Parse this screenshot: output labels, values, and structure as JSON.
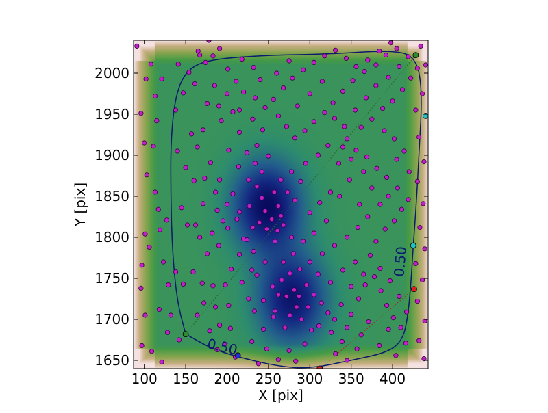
{
  "chart_data": {
    "type": "scatter",
    "xlabel": "X [pix]",
    "ylabel": "Y [pix]",
    "xlim": [
      87,
      443
    ],
    "ylim": [
      1640,
      2040
    ],
    "x_ticks": [
      100,
      150,
      200,
      250,
      300,
      350,
      400
    ],
    "y_ticks": [
      1650,
      1700,
      1750,
      1800,
      1850,
      1900,
      1950,
      2000
    ],
    "x_tick_labels": [
      "100",
      "150",
      "200",
      "250",
      "300",
      "350",
      "400"
    ],
    "y_tick_labels": [
      "1650",
      "1700",
      "1750",
      "1800",
      "1850",
      "1900",
      "1950",
      "2000"
    ],
    "contour_level_labels": [
      {
        "text": "0.50",
        "x": 193,
        "y": 1661,
        "rotate": 13
      },
      {
        "text": "0.50",
        "x": 415,
        "y": 1770,
        "rotate": -85
      }
    ],
    "contour_level": 0.5,
    "density_centers": [
      {
        "x": 248,
        "y": 1838,
        "strength": 1.0
      },
      {
        "x": 278,
        "y": 1725,
        "strength": 0.9
      }
    ],
    "contour_line": [
      [
        150,
        1682
      ],
      [
        140,
        1720
      ],
      [
        134,
        1780
      ],
      [
        132,
        1850
      ],
      [
        132,
        1920
      ],
      [
        138,
        1975
      ],
      [
        152,
        2005
      ],
      [
        180,
        2017
      ],
      [
        250,
        2022
      ],
      [
        320,
        2023
      ],
      [
        400,
        2028
      ],
      [
        428,
        2020
      ],
      [
        436,
        1980
      ],
      [
        432,
        1900
      ],
      [
        428,
        1830
      ],
      [
        425,
        1790
      ],
      [
        422,
        1740
      ],
      [
        418,
        1700
      ],
      [
        412,
        1675
      ],
      [
        395,
        1660
      ],
      [
        350,
        1650
      ],
      [
        300,
        1640
      ],
      [
        260,
        1643
      ],
      [
        210,
        1655
      ],
      [
        180,
        1665
      ],
      [
        150,
        1682
      ]
    ],
    "dotted_lines": [
      {
        "color": "#2a6a2a",
        "points": [
          [
            150,
            1682
          ],
          [
            428,
            2022
          ]
        ]
      },
      {
        "color": "#a03020",
        "points": [
          [
            312,
            1640
          ],
          [
            426,
            1737
          ]
        ]
      }
    ],
    "marker_points": [
      {
        "x": 150,
        "y": 1682,
        "color": "#2e8b2e"
      },
      {
        "x": 428,
        "y": 2022,
        "color": "#2e8b2e"
      },
      {
        "x": 213,
        "y": 1656,
        "color": "#1f2fd0"
      },
      {
        "x": 440,
        "y": 1948,
        "color": "#20c0c0"
      },
      {
        "x": 425,
        "y": 1790,
        "color": "#20c0c0"
      },
      {
        "x": 426,
        "y": 1737,
        "color": "#e02020"
      },
      {
        "x": 312,
        "y": 1640,
        "color": "#e02020"
      }
    ],
    "points": [
      [
        91,
        2033
      ],
      [
        102,
        1993
      ],
      [
        108,
        2011
      ],
      [
        96,
        1951
      ],
      [
        113,
        1972
      ],
      [
        121,
        1993
      ],
      [
        100,
        1915
      ],
      [
        111,
        1911
      ],
      [
        115,
        1942
      ],
      [
        103,
        1876
      ],
      [
        113,
        1855
      ],
      [
        117,
        1834
      ],
      [
        127,
        1821
      ],
      [
        101,
        1804
      ],
      [
        119,
        1809
      ],
      [
        106,
        1788
      ],
      [
        123,
        1770
      ],
      [
        97,
        1766
      ],
      [
        129,
        1742
      ],
      [
        96,
        1738
      ],
      [
        118,
        1712
      ],
      [
        101,
        1705
      ],
      [
        128,
        1684
      ],
      [
        97,
        1668
      ],
      [
        109,
        1661
      ],
      [
        121,
        1648
      ],
      [
        142,
        1675
      ],
      [
        132,
        1705
      ],
      [
        138,
        1758
      ],
      [
        147,
        1743
      ],
      [
        145,
        1836
      ],
      [
        152,
        1815
      ],
      [
        140,
        1905
      ],
      [
        150,
        1885
      ],
      [
        138,
        1955
      ],
      [
        147,
        1976
      ],
      [
        141,
        2011
      ],
      [
        154,
        2001
      ],
      [
        167,
        2022
      ],
      [
        178,
        2040
      ],
      [
        165,
        2027
      ],
      [
        191,
        2030
      ],
      [
        183,
        2021
      ],
      [
        174,
        2013
      ],
      [
        161,
        1987
      ],
      [
        176,
        1963
      ],
      [
        171,
        1931
      ],
      [
        157,
        1926
      ],
      [
        164,
        1910
      ],
      [
        180,
        1891
      ],
      [
        173,
        1872
      ],
      [
        160,
        1869
      ],
      [
        171,
        1841
      ],
      [
        188,
        1833
      ],
      [
        162,
        1815
      ],
      [
        167,
        1800
      ],
      [
        176,
        1780
      ],
      [
        159,
        1758
      ],
      [
        170,
        1744
      ],
      [
        183,
        1741
      ],
      [
        172,
        1720
      ],
      [
        186,
        1715
      ],
      [
        164,
        1705
      ],
      [
        191,
        1693
      ],
      [
        179,
        1686
      ],
      [
        197,
        1670
      ],
      [
        204,
        1689
      ],
      [
        188,
        1663
      ],
      [
        210,
        1654
      ],
      [
        202,
        1717
      ],
      [
        198,
        1742
      ],
      [
        205,
        1761
      ],
      [
        215,
        1779
      ],
      [
        220,
        1798
      ],
      [
        201,
        1811
      ],
      [
        212,
        1822
      ],
      [
        191,
        1870
      ],
      [
        207,
        1853
      ],
      [
        215,
        1831
      ],
      [
        227,
        1838
      ],
      [
        231,
        1812
      ],
      [
        224,
        1797
      ],
      [
        214,
        1886
      ],
      [
        202,
        1906
      ],
      [
        215,
        1928
      ],
      [
        193,
        1942
      ],
      [
        207,
        1953
      ],
      [
        220,
        1977
      ],
      [
        211,
        1990
      ],
      [
        201,
        2005
      ],
      [
        218,
        2017
      ],
      [
        232,
        2007
      ],
      [
        240,
        1992
      ],
      [
        234,
        1970
      ],
      [
        246,
        1958
      ],
      [
        231,
        1944
      ],
      [
        243,
        1931
      ],
      [
        236,
        1912
      ],
      [
        224,
        1903
      ],
      [
        250,
        1899
      ],
      [
        242,
        1880
      ],
      [
        236,
        1862
      ],
      [
        242,
        1848
      ],
      [
        257,
        1855
      ],
      [
        262,
        1838
      ],
      [
        246,
        1832
      ],
      [
        254,
        1822
      ],
      [
        239,
        1818
      ],
      [
        248,
        1810
      ],
      [
        261,
        1808
      ],
      [
        265,
        1826
      ],
      [
        258,
        1795
      ],
      [
        232,
        1783
      ],
      [
        246,
        1770
      ],
      [
        236,
        1754
      ],
      [
        255,
        1740
      ],
      [
        244,
        1723
      ],
      [
        233,
        1710
      ],
      [
        256,
        1703
      ],
      [
        244,
        1688
      ],
      [
        230,
        1673
      ],
      [
        248,
        1664
      ],
      [
        262,
        1651
      ],
      [
        238,
        1646
      ],
      [
        275,
        1662
      ],
      [
        283,
        1649
      ],
      [
        294,
        1670
      ],
      [
        302,
        1687
      ],
      [
        290,
        1700
      ],
      [
        284,
        1715
      ],
      [
        272,
        1728
      ],
      [
        281,
        1736
      ],
      [
        266,
        1748
      ],
      [
        276,
        1756
      ],
      [
        288,
        1761
      ],
      [
        296,
        1742
      ],
      [
        305,
        1730
      ],
      [
        314,
        1720
      ],
      [
        322,
        1708
      ],
      [
        311,
        1692
      ],
      [
        326,
        1684
      ],
      [
        339,
        1673
      ],
      [
        331,
        1658
      ],
      [
        345,
        1650
      ],
      [
        357,
        1664
      ],
      [
        362,
        1681
      ],
      [
        371,
        1697
      ],
      [
        350,
        1706
      ],
      [
        338,
        1718
      ],
      [
        359,
        1725
      ],
      [
        367,
        1742
      ],
      [
        378,
        1752
      ],
      [
        386,
        1735
      ],
      [
        393,
        1717
      ],
      [
        401,
        1702
      ],
      [
        395,
        1688
      ],
      [
        384,
        1668
      ],
      [
        404,
        1656
      ],
      [
        416,
        1671
      ],
      [
        410,
        1690
      ],
      [
        417,
        1709
      ],
      [
        408,
        1728
      ],
      [
        397,
        1747
      ],
      [
        385,
        1762
      ],
      [
        373,
        1778
      ],
      [
        380,
        1795
      ],
      [
        391,
        1810
      ],
      [
        402,
        1820
      ],
      [
        411,
        1834
      ],
      [
        419,
        1846
      ],
      [
        406,
        1860
      ],
      [
        393,
        1873
      ],
      [
        381,
        1884
      ],
      [
        369,
        1898
      ],
      [
        356,
        1906
      ],
      [
        345,
        1920
      ],
      [
        362,
        1934
      ],
      [
        375,
        1944
      ],
      [
        388,
        1957
      ],
      [
        400,
        1966
      ],
      [
        412,
        1980
      ],
      [
        422,
        1994
      ],
      [
        430,
        2006
      ],
      [
        419,
        2020
      ],
      [
        405,
        2030
      ],
      [
        392,
        2022
      ],
      [
        380,
        2010
      ],
      [
        366,
        2002
      ],
      [
        352,
        1991
      ],
      [
        340,
        1978
      ],
      [
        328,
        1964
      ],
      [
        318,
        1952
      ],
      [
        305,
        1941
      ],
      [
        294,
        1930
      ],
      [
        282,
        1921
      ],
      [
        272,
        1935
      ],
      [
        262,
        1948
      ],
      [
        256,
        1968
      ],
      [
        268,
        1982
      ],
      [
        279,
        1994
      ],
      [
        292,
        2004
      ],
      [
        305,
        2013
      ],
      [
        318,
        2021
      ],
      [
        331,
        2028
      ],
      [
        344,
        2018
      ],
      [
        356,
        2008
      ],
      [
        370,
        2016
      ],
      [
        384,
        2027
      ],
      [
        398,
        2037
      ],
      [
        434,
        2033
      ],
      [
        440,
        2010
      ],
      [
        436,
        1975
      ],
      [
        428,
        1955
      ],
      [
        432,
        1922
      ],
      [
        438,
        1892
      ],
      [
        430,
        1868
      ],
      [
        437,
        1841
      ],
      [
        433,
        1812
      ],
      [
        439,
        1786
      ],
      [
        428,
        1768
      ],
      [
        436,
        1748
      ],
      [
        430,
        1722
      ],
      [
        439,
        1698
      ],
      [
        432,
        1674
      ],
      [
        438,
        1652
      ],
      [
        300,
        1830
      ],
      [
        312,
        1842
      ],
      [
        325,
        1855
      ],
      [
        289,
        1868
      ],
      [
        278,
        1880
      ],
      [
        295,
        1890
      ],
      [
        310,
        1900
      ],
      [
        322,
        1912
      ],
      [
        335,
        1890
      ],
      [
        348,
        1870
      ],
      [
        336,
        1850
      ],
      [
        320,
        1820
      ],
      [
        305,
        1805
      ],
      [
        292,
        1795
      ],
      [
        280,
        1780
      ],
      [
        268,
        1770
      ],
      [
        300,
        1770
      ],
      [
        315,
        1780
      ],
      [
        330,
        1790
      ],
      [
        345,
        1800
      ],
      [
        358,
        1812
      ],
      [
        370,
        1825
      ],
      [
        340,
        1760
      ],
      [
        325,
        1745
      ],
      [
        310,
        1755
      ],
      [
        350,
        1740
      ],
      [
        365,
        1755
      ],
      [
        355,
        1770
      ],
      [
        330,
        1700
      ],
      [
        345,
        1690
      ],
      [
        270,
        1690
      ],
      [
        258,
        1710
      ],
      [
        262,
        1730
      ],
      [
        287,
        1728
      ],
      [
        298,
        1715
      ],
      [
        276,
        1705
      ],
      [
        226,
        1725
      ],
      [
        218,
        1745
      ],
      [
        230,
        1760
      ],
      [
        190,
        1790
      ],
      [
        182,
        1805
      ],
      [
        195,
        1820
      ],
      [
        200,
        1840
      ],
      [
        186,
        1855
      ],
      [
        226,
        1870
      ],
      [
        234,
        1890
      ],
      [
        265,
        1870
      ],
      [
        273,
        1855
      ],
      [
        282,
        1845
      ],
      [
        268,
        1815
      ],
      [
        278,
        1800
      ],
      [
        215,
        1955
      ],
      [
        190,
        1960
      ],
      [
        185,
        1985
      ],
      [
        200,
        1975
      ],
      [
        260,
        2000
      ],
      [
        275,
        2015
      ],
      [
        285,
        1960
      ],
      [
        300,
        1975
      ],
      [
        315,
        1990
      ],
      [
        330,
        1945
      ],
      [
        342,
        1935
      ],
      [
        355,
        1955
      ],
      [
        368,
        1970
      ],
      [
        380,
        1985
      ],
      [
        395,
        1995
      ],
      [
        408,
        2008
      ],
      [
        390,
        1930
      ],
      [
        402,
        1920
      ],
      [
        414,
        1905
      ],
      [
        420,
        1880
      ],
      [
        405,
        1895
      ],
      [
        395,
        1850
      ],
      [
        385,
        1840
      ],
      [
        375,
        1860
      ],
      [
        360,
        1840
      ],
      [
        365,
        1880
      ],
      [
        350,
        1895
      ],
      [
        340,
        1910
      ]
    ]
  }
}
